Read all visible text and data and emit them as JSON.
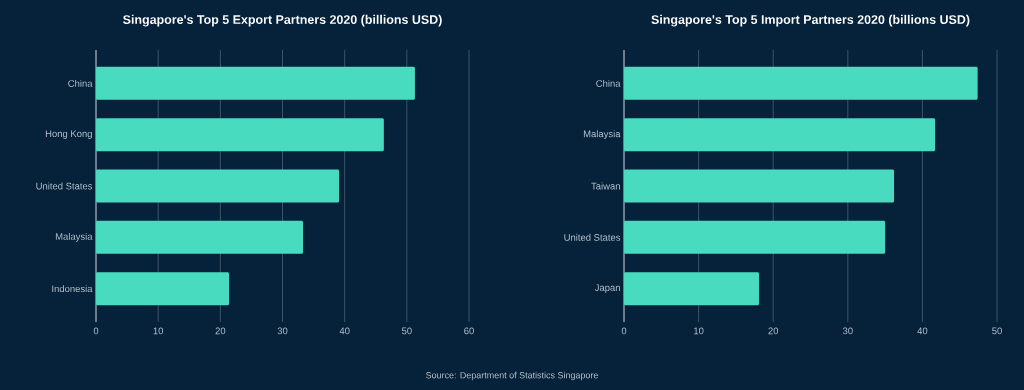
{
  "chart_data": [
    {
      "type": "bar",
      "orientation": "horizontal",
      "title": "Singapore's Top 5 Export Partners 2020 (billions USD)",
      "categories": [
        "China",
        "Hong Kong",
        "United States",
        "Malaysia",
        "Indonesia"
      ],
      "values": [
        51.3,
        46.3,
        39.1,
        33.3,
        21.4
      ],
      "color": "#48dbbf",
      "xlim": [
        0,
        60
      ],
      "xticks": [
        0,
        10,
        20,
        30,
        40,
        50,
        60
      ],
      "grid": "x",
      "annotations": [
        "Source: Department of Statistics Singapore"
      ]
    },
    {
      "type": "bar",
      "orientation": "horizontal",
      "title": "Singapore's Top 5 Import Partners 2020 (billions USD)",
      "categories": [
        "China",
        "Malaysia",
        "Taiwan",
        "United States",
        "Japan"
      ],
      "values": [
        47.4,
        41.7,
        36.2,
        35.0,
        18.1
      ],
      "color": "#48dbbf",
      "xlim": [
        0,
        50
      ],
      "xticks": [
        0,
        10,
        20,
        30,
        40,
        50
      ],
      "grid": "x"
    }
  ]
}
